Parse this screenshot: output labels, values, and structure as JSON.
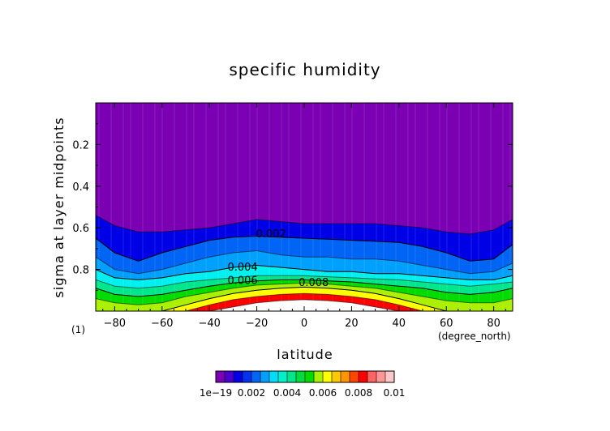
{
  "chart_data": {
    "type": "contour",
    "title": "specific humidity",
    "xlabel": "latitude",
    "ylabel": "sigma at layer midpoints",
    "x_units": "(degree_north)",
    "y_units": "(1)",
    "xlim": [
      -88,
      88
    ],
    "ylim": [
      1.0,
      0.0
    ],
    "x_ticks": [
      -80,
      -60,
      -40,
      -20,
      0,
      20,
      40,
      60,
      80
    ],
    "y_ticks": [
      0.2,
      0.4,
      0.6,
      0.8
    ],
    "levels": [
      1e-19,
      0.001,
      0.002,
      0.003,
      0.004,
      0.005,
      0.006,
      0.007,
      0.008,
      0.009,
      0.01
    ],
    "colors": [
      "#7b00b4",
      "#0000e6",
      "#0064f5",
      "#00a0ff",
      "#00f0f0",
      "#00e68c",
      "#00dc00",
      "#aaf000",
      "#ffff00",
      "#ffaa00",
      "#ff6400",
      "#ff0000",
      "#ff9696",
      "#ffffff"
    ],
    "colorbar_labels": [
      "1e-19",
      "0.002",
      "0.004",
      "0.006",
      "0.008",
      "0.01"
    ],
    "contour_labels": [
      {
        "text": "0.002",
        "lat": -14,
        "sigma": 0.645
      },
      {
        "text": "0.004",
        "lat": -26,
        "sigma": 0.805
      },
      {
        "text": "0.006",
        "lat": -26,
        "sigma": 0.87
      },
      {
        "text": "0.008",
        "lat": 4,
        "sigma": 0.88
      }
    ],
    "lat_grid": [
      -88,
      -80,
      -70,
      -60,
      -50,
      -40,
      -30,
      -20,
      -10,
      0,
      10,
      20,
      30,
      40,
      50,
      60,
      70,
      80,
      88
    ],
    "boundaries": [
      {
        "level": 0.001,
        "sigma": [
          0.54,
          0.59,
          0.62,
          0.62,
          0.61,
          0.6,
          0.58,
          0.56,
          0.57,
          0.58,
          0.58,
          0.58,
          0.58,
          0.59,
          0.6,
          0.62,
          0.63,
          0.61,
          0.56
        ]
      },
      {
        "level": 0.002,
        "sigma": [
          0.65,
          0.72,
          0.76,
          0.72,
          0.69,
          0.66,
          0.645,
          0.64,
          0.645,
          0.65,
          0.655,
          0.66,
          0.665,
          0.67,
          0.69,
          0.72,
          0.76,
          0.75,
          0.68
        ]
      },
      {
        "level": 0.003,
        "sigma": [
          0.74,
          0.8,
          0.82,
          0.8,
          0.77,
          0.74,
          0.72,
          0.71,
          0.73,
          0.74,
          0.74,
          0.75,
          0.75,
          0.76,
          0.78,
          0.8,
          0.82,
          0.81,
          0.77
        ]
      },
      {
        "level": 0.004,
        "sigma": [
          0.8,
          0.84,
          0.85,
          0.84,
          0.82,
          0.81,
          0.79,
          0.78,
          0.79,
          0.8,
          0.81,
          0.81,
          0.82,
          0.82,
          0.83,
          0.84,
          0.85,
          0.85,
          0.83
        ]
      },
      {
        "level": 0.005,
        "sigma": [
          0.85,
          0.88,
          0.89,
          0.88,
          0.86,
          0.85,
          0.84,
          0.83,
          0.83,
          0.83,
          0.835,
          0.84,
          0.845,
          0.85,
          0.86,
          0.87,
          0.88,
          0.87,
          0.86
        ]
      },
      {
        "level": 0.006,
        "sigma": [
          0.89,
          0.92,
          0.93,
          0.92,
          0.9,
          0.88,
          0.865,
          0.855,
          0.85,
          0.85,
          0.855,
          0.86,
          0.87,
          0.88,
          0.89,
          0.91,
          0.92,
          0.91,
          0.89
        ]
      },
      {
        "level": 0.007,
        "sigma": [
          0.94,
          0.96,
          0.97,
          0.96,
          0.93,
          0.91,
          0.89,
          0.875,
          0.87,
          0.865,
          0.87,
          0.88,
          0.89,
          0.91,
          0.93,
          0.95,
          0.96,
          0.96,
          0.94
        ]
      },
      {
        "level": 0.008,
        "sigma": [
          1.0,
          1.0,
          1.0,
          1.0,
          0.97,
          0.94,
          0.915,
          0.9,
          0.89,
          0.885,
          0.89,
          0.9,
          0.915,
          0.94,
          0.97,
          1.0,
          1.0,
          1.0,
          1.0
        ]
      },
      {
        "level": 0.009,
        "sigma": [
          1.0,
          1.0,
          1.0,
          1.0,
          1.0,
          0.97,
          0.945,
          0.93,
          0.92,
          0.915,
          0.92,
          0.93,
          0.945,
          0.97,
          1.0,
          1.0,
          1.0,
          1.0,
          1.0
        ]
      },
      {
        "level": 0.01,
        "sigma": [
          1.0,
          1.0,
          1.0,
          1.0,
          1.0,
          1.0,
          0.98,
          0.96,
          0.95,
          0.945,
          0.95,
          0.96,
          0.98,
          1.0,
          1.0,
          1.0,
          1.0,
          1.0,
          1.0
        ]
      }
    ],
    "black_contours": [
      0.002,
      0.004,
      0.006,
      0.008
    ],
    "grid": false,
    "colorbar_position": "bottom"
  }
}
